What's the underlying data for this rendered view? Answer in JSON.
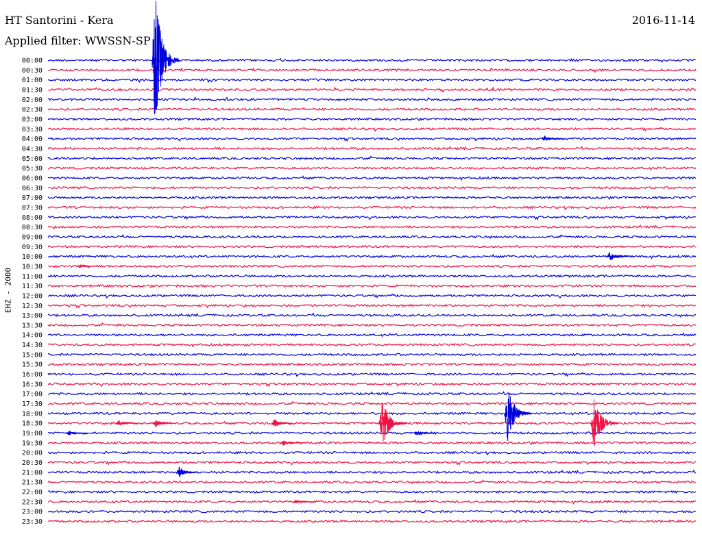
{
  "header": {
    "station": "HT Santorini - Kera",
    "date": "2016-11-14",
    "filter": "Applied filter: WWSSN-SP"
  },
  "chart_data": {
    "type": "helicorder",
    "channel_label": "EHZ - 2000",
    "time_labels": [
      "00:00",
      "00:30",
      "01:00",
      "01:30",
      "02:00",
      "02:30",
      "03:00",
      "03:30",
      "04:00",
      "04:30",
      "05:00",
      "05:30",
      "06:00",
      "06:30",
      "07:00",
      "07:30",
      "08:00",
      "08:30",
      "09:00",
      "09:30",
      "10:00",
      "10:30",
      "11:00",
      "11:30",
      "12:00",
      "12:30",
      "13:00",
      "13:30",
      "14:00",
      "14:30",
      "15:00",
      "15:30",
      "16:00",
      "16:30",
      "17:00",
      "17:30",
      "18:00",
      "18:30",
      "19:00",
      "19:30",
      "20:00",
      "20:30",
      "21:00",
      "21:30",
      "22:00",
      "22:30",
      "23:00",
      "23:30"
    ],
    "trace_minutes_per_line": 30,
    "colors": [
      "#0000dd",
      "#ee1144"
    ],
    "events": [
      {
        "line": 0,
        "minute": 5.0,
        "amplitude": 2.6,
        "spans_lines": 13
      },
      {
        "line": 8,
        "minute": 23.0,
        "amplitude": 0.35,
        "spans_lines": 1
      },
      {
        "line": 20,
        "minute": 26.0,
        "amplitude": 0.6,
        "spans_lines": 1
      },
      {
        "line": 21,
        "minute": 1.5,
        "amplitude": 0.25,
        "spans_lines": 1
      },
      {
        "line": 37,
        "minute": 3.3,
        "amplitude": 0.35,
        "spans_lines": 1
      },
      {
        "line": 37,
        "minute": 5.0,
        "amplitude": 0.55,
        "spans_lines": 1
      },
      {
        "line": 37,
        "minute": 10.5,
        "amplitude": 0.6,
        "spans_lines": 1
      },
      {
        "line": 37,
        "minute": 15.5,
        "amplitude": 2.1,
        "spans_lines": 6
      },
      {
        "line": 37,
        "minute": 25.3,
        "amplitude": 2.3,
        "spans_lines": 6
      },
      {
        "line": 36,
        "minute": 21.3,
        "amplitude": 2.4,
        "spans_lines": 6
      },
      {
        "line": 38,
        "minute": 1.0,
        "amplitude": 0.35,
        "spans_lines": 1
      },
      {
        "line": 38,
        "minute": 17.1,
        "amplitude": 0.45,
        "spans_lines": 1
      },
      {
        "line": 39,
        "minute": 10.9,
        "amplitude": 0.4,
        "spans_lines": 1
      },
      {
        "line": 42,
        "minute": 6.1,
        "amplitude": 0.75,
        "spans_lines": 1
      },
      {
        "line": 45,
        "minute": 11.5,
        "amplitude": 0.2,
        "spans_lines": 1
      }
    ]
  }
}
